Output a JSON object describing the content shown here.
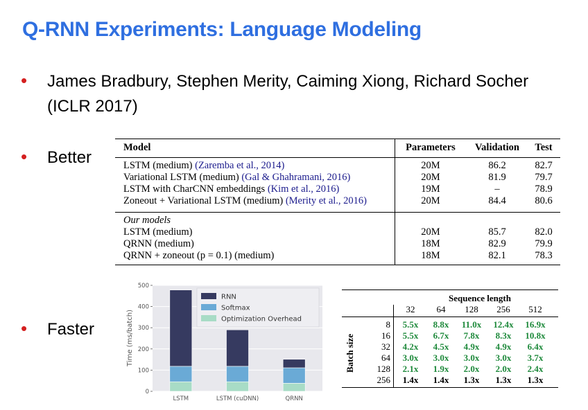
{
  "slide": {
    "title": "Q-RNN Experiments: Language Modeling",
    "bullets": [
      {
        "line1": "James Bradbury, Stephen Merity, Caiming Xiong, Richard Socher",
        "line2": "(ICLR 2017)"
      },
      {
        "text": "Better"
      },
      {
        "text": "Faster"
      }
    ]
  },
  "results_table": {
    "headers": {
      "model": "Model",
      "parameters": "Parameters",
      "validation": "Validation",
      "test": "Test"
    },
    "baseline_rows": [
      {
        "model": "LSTM (medium)",
        "cite": "(Zaremba et al., 2014)",
        "parameters": "20M",
        "validation": "86.2",
        "test": "82.7"
      },
      {
        "model": "Variational LSTM (medium)",
        "cite": "(Gal & Ghahramani, 2016)",
        "parameters": "20M",
        "validation": "81.9",
        "test": "79.7"
      },
      {
        "model": "LSTM with CharCNN embeddings",
        "cite": "(Kim et al., 2016)",
        "parameters": "19M",
        "validation": "–",
        "test": "78.9"
      },
      {
        "model": "Zoneout + Variational LSTM (medium)",
        "cite": "(Merity et al., 2016)",
        "parameters": "20M",
        "validation": "84.4",
        "test": "80.6"
      }
    ],
    "section_label": "Our models",
    "our_rows": [
      {
        "model": "LSTM (medium)",
        "parameters": "20M",
        "validation": "85.7",
        "test": "82.0"
      },
      {
        "model": "QRNN (medium)",
        "parameters": "18M",
        "validation": "82.9",
        "test": "79.9"
      },
      {
        "model": "QRNN + zoneout (p = 0.1) (medium)",
        "parameters": "18M",
        "validation": "82.1",
        "test": "78.3"
      }
    ]
  },
  "chart_data": {
    "type": "bar",
    "stacked": true,
    "categories": [
      "LSTM",
      "LSTM (cuDNN)",
      "QRNN"
    ],
    "series": [
      {
        "name": "Optimization Overhead",
        "color": "#a8dcc6",
        "values": [
          45,
          45,
          38
        ]
      },
      {
        "name": "Softmax",
        "color": "#6aaad6",
        "values": [
          73,
          73,
          73
        ]
      },
      {
        "name": "RNN",
        "color": "#363a60",
        "values": [
          360,
          172,
          40
        ]
      }
    ],
    "ylabel": "Time (ms/batch)",
    "ylim": [
      0,
      500
    ],
    "yticks": [
      "0",
      "100",
      "200",
      "300",
      "400",
      "500"
    ],
    "grid": true,
    "legend": "top-right"
  },
  "speed_table": {
    "title": "Sequence length",
    "row_label": "Batch size",
    "columns": [
      "32",
      "64",
      "128",
      "256",
      "512"
    ],
    "rows": [
      {
        "batch": "8",
        "values": [
          "5.5x",
          "8.8x",
          "11.0x",
          "12.4x",
          "16.9x"
        ],
        "green": [
          true,
          true,
          true,
          true,
          true
        ]
      },
      {
        "batch": "16",
        "values": [
          "5.5x",
          "6.7x",
          "7.8x",
          "8.3x",
          "10.8x"
        ],
        "green": [
          true,
          true,
          true,
          true,
          true
        ]
      },
      {
        "batch": "32",
        "values": [
          "4.2x",
          "4.5x",
          "4.9x",
          "4.9x",
          "6.4x"
        ],
        "green": [
          true,
          true,
          true,
          true,
          true
        ]
      },
      {
        "batch": "64",
        "values": [
          "3.0x",
          "3.0x",
          "3.0x",
          "3.0x",
          "3.7x"
        ],
        "green": [
          true,
          true,
          true,
          true,
          true
        ]
      },
      {
        "batch": "128",
        "values": [
          "2.1x",
          "1.9x",
          "2.0x",
          "2.0x",
          "2.4x"
        ],
        "green": [
          true,
          true,
          true,
          true,
          true
        ]
      },
      {
        "batch": "256",
        "values": [
          "1.4x",
          "1.4x",
          "1.3x",
          "1.3x",
          "1.3x"
        ],
        "green": [
          false,
          false,
          false,
          false,
          false
        ]
      }
    ]
  }
}
